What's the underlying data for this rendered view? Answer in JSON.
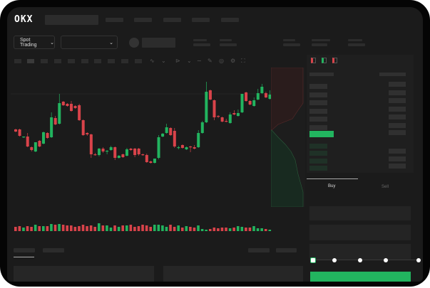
{
  "header": {
    "logo": "OKX"
  },
  "toolbar": {
    "market_selector": "Spot Trading",
    "chevron": "⌄"
  },
  "orderbook": {
    "view_icons": [
      "orderbook-both-icon",
      "orderbook-buy-icon",
      "orderbook-sell-icon"
    ]
  },
  "trade": {
    "tabs": [
      "Buy",
      "Sell"
    ],
    "active_tab": "Buy",
    "slider_value": 0
  },
  "colors": {
    "up": "#22b45f",
    "down": "#d9434a",
    "accent": "#22b45f"
  },
  "chart_data": {
    "type": "candlestick",
    "candles": [
      {
        "o": 118,
        "h": 119,
        "l": 114,
        "c": 115
      },
      {
        "o": 118,
        "h": 119,
        "l": 108,
        "c": 109
      },
      {
        "o": 107,
        "h": 108,
        "l": 106,
        "c": 108
      },
      {
        "o": 108,
        "h": 113,
        "l": 93,
        "c": 94
      },
      {
        "o": 93,
        "h": 94,
        "l": 87,
        "c": 89
      },
      {
        "o": 87,
        "h": 100,
        "l": 86,
        "c": 100
      },
      {
        "o": 102,
        "h": 103,
        "l": 93,
        "c": 94
      },
      {
        "o": 98,
        "h": 115,
        "l": 97,
        "c": 114
      },
      {
        "o": 113,
        "h": 114,
        "l": 105,
        "c": 106
      },
      {
        "o": 107,
        "h": 142,
        "l": 106,
        "c": 135
      },
      {
        "o": 134,
        "h": 137,
        "l": 124,
        "c": 125
      },
      {
        "o": 126,
        "h": 168,
        "l": 125,
        "c": 155
      },
      {
        "o": 157,
        "h": 158,
        "l": 151,
        "c": 152
      },
      {
        "o": 154,
        "h": 155,
        "l": 150,
        "c": 151
      },
      {
        "o": 154,
        "h": 158,
        "l": 143,
        "c": 144
      },
      {
        "o": 151,
        "h": 152,
        "l": 147,
        "c": 148
      },
      {
        "o": 152,
        "h": 154,
        "l": 130,
        "c": 131
      },
      {
        "o": 131,
        "h": 132,
        "l": 109,
        "c": 110
      },
      {
        "o": 113,
        "h": 114,
        "l": 109,
        "c": 111
      },
      {
        "o": 111,
        "h": 112,
        "l": 78,
        "c": 83
      },
      {
        "o": 83,
        "h": 85,
        "l": 81,
        "c": 82
      },
      {
        "o": 82,
        "h": 92,
        "l": 80,
        "c": 91
      },
      {
        "o": 91,
        "h": 93,
        "l": 85,
        "c": 87
      },
      {
        "o": 87,
        "h": 89,
        "l": 83,
        "c": 88
      },
      {
        "o": 89,
        "h": 95,
        "l": 88,
        "c": 93
      },
      {
        "o": 93,
        "h": 94,
        "l": 75,
        "c": 78
      },
      {
        "o": 78,
        "h": 82,
        "l": 77,
        "c": 81
      },
      {
        "o": 83,
        "h": 84,
        "l": 78,
        "c": 79
      },
      {
        "o": 81,
        "h": 92,
        "l": 80,
        "c": 90
      },
      {
        "o": 91,
        "h": 92,
        "l": 88,
        "c": 89
      },
      {
        "o": 91,
        "h": 92,
        "l": 79,
        "c": 82
      },
      {
        "o": 91,
        "h": 92,
        "l": 81,
        "c": 83
      },
      {
        "o": 83,
        "h": 84,
        "l": 81,
        "c": 82
      },
      {
        "o": 82,
        "h": 84,
        "l": 71,
        "c": 72
      },
      {
        "o": 73,
        "h": 74,
        "l": 70,
        "c": 71
      },
      {
        "o": 71,
        "h": 77,
        "l": 70,
        "c": 77
      },
      {
        "o": 78,
        "h": 110,
        "l": 76,
        "c": 107
      },
      {
        "o": 108,
        "h": 113,
        "l": 107,
        "c": 112
      },
      {
        "o": 113,
        "h": 126,
        "l": 112,
        "c": 121
      },
      {
        "o": 120,
        "h": 121,
        "l": 109,
        "c": 110
      },
      {
        "o": 116,
        "h": 120,
        "l": 92,
        "c": 94
      },
      {
        "o": 92,
        "h": 95,
        "l": 90,
        "c": 93
      },
      {
        "o": 96,
        "h": 97,
        "l": 91,
        "c": 92
      },
      {
        "o": 90,
        "h": 94,
        "l": 89,
        "c": 93
      },
      {
        "o": 94,
        "h": 95,
        "l": 86,
        "c": 93
      },
      {
        "o": 93,
        "h": 96,
        "l": 90,
        "c": 91
      },
      {
        "o": 93,
        "h": 117,
        "l": 92,
        "c": 113
      },
      {
        "o": 113,
        "h": 130,
        "l": 112,
        "c": 128
      },
      {
        "o": 128,
        "h": 185,
        "l": 127,
        "c": 171
      },
      {
        "o": 173,
        "h": 174,
        "l": 159,
        "c": 160
      },
      {
        "o": 159,
        "h": 160,
        "l": 131,
        "c": 135
      },
      {
        "o": 137,
        "h": 138,
        "l": 134,
        "c": 136
      },
      {
        "o": 135,
        "h": 136,
        "l": 128,
        "c": 129
      },
      {
        "o": 130,
        "h": 133,
        "l": 128,
        "c": 129
      },
      {
        "o": 127,
        "h": 142,
        "l": 126,
        "c": 139
      },
      {
        "o": 141,
        "h": 145,
        "l": 138,
        "c": 139
      },
      {
        "o": 137,
        "h": 146,
        "l": 136,
        "c": 141
      },
      {
        "o": 142,
        "h": 168,
        "l": 141,
        "c": 168
      },
      {
        "o": 170,
        "h": 171,
        "l": 157,
        "c": 158
      },
      {
        "o": 158,
        "h": 159,
        "l": 152,
        "c": 153
      },
      {
        "o": 151,
        "h": 163,
        "l": 150,
        "c": 159
      },
      {
        "o": 160,
        "h": 175,
        "l": 159,
        "c": 169
      },
      {
        "o": 169,
        "h": 182,
        "l": 168,
        "c": 178
      },
      {
        "o": 169,
        "h": 171,
        "l": 162,
        "c": 163
      },
      {
        "o": 161,
        "h": 173,
        "l": 160,
        "c": 167
      }
    ],
    "volume": [
      6,
      7,
      5,
      7,
      6,
      9,
      7,
      7,
      7,
      10,
      9,
      10,
      9,
      8,
      8,
      6,
      7,
      9,
      7,
      8,
      6,
      11,
      8,
      8,
      5,
      8,
      6,
      8,
      8,
      9,
      6,
      7,
      9,
      8,
      6,
      9,
      9,
      8,
      6,
      9,
      6,
      8,
      5,
      7,
      6,
      5,
      8,
      3,
      2,
      3,
      5,
      4,
      5,
      5,
      4,
      5,
      7,
      6,
      5,
      5,
      7,
      4,
      4,
      3,
      2
    ]
  }
}
